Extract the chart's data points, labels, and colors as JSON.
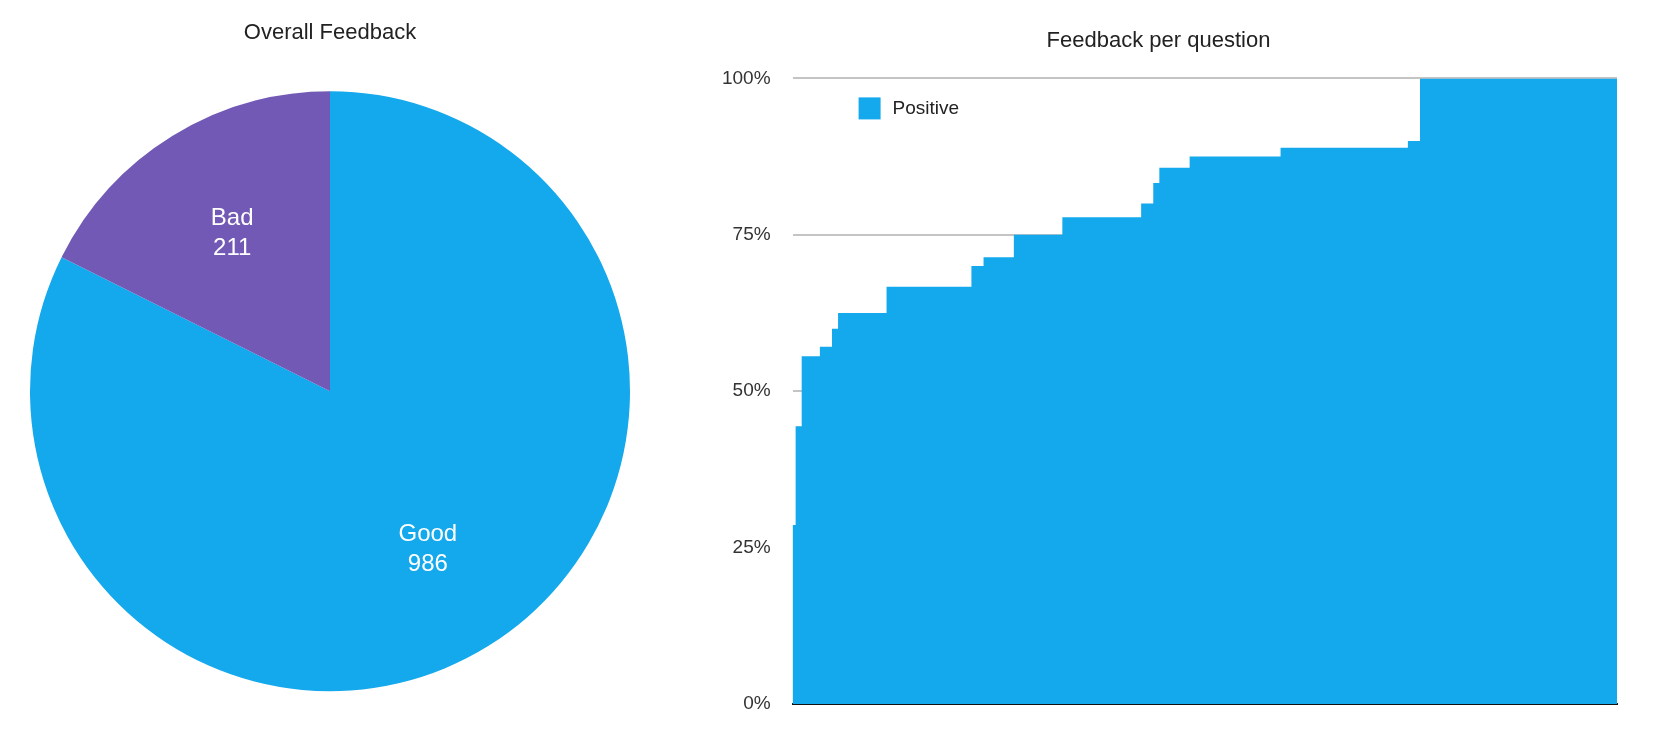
{
  "chart_data": [
    {
      "type": "pie",
      "title": "Overall Feedback",
      "categories": [
        "Good",
        "Bad"
      ],
      "values": [
        986,
        211
      ],
      "colors": [
        "#14a8ec",
        "#7159b5"
      ],
      "data_labels": true
    },
    {
      "type": "area",
      "title": "Feedback per question",
      "categories": [
        null,
        null,
        null,
        null,
        null,
        null,
        null,
        null,
        null,
        null,
        null,
        null,
        null,
        null,
        null,
        null,
        null,
        null,
        null,
        null,
        null,
        null,
        null,
        null,
        null,
        null,
        null,
        null,
        null,
        null,
        null,
        null,
        null,
        null,
        null,
        null,
        null,
        null,
        null,
        null,
        null,
        null,
        null,
        null,
        null,
        null,
        null,
        null,
        null,
        null,
        null,
        null,
        null,
        null,
        null,
        null,
        null,
        null,
        null,
        null,
        null,
        null,
        null,
        null,
        null,
        null,
        null,
        null,
        null,
        null,
        null,
        null,
        null,
        null,
        null,
        null,
        null,
        null,
        null,
        null,
        null,
        null,
        null,
        null,
        null,
        null,
        null,
        null,
        null,
        null,
        null,
        null,
        null,
        null,
        null,
        null,
        null,
        null,
        null,
        null,
        null,
        null,
        null,
        null,
        null,
        null,
        null,
        null,
        null,
        null,
        null,
        null,
        null,
        null,
        null,
        null,
        null,
        null,
        null,
        null,
        null,
        null,
        null,
        null,
        null,
        null,
        null,
        null,
        null,
        null,
        null,
        null,
        null,
        null,
        null,
        null,
        null
      ],
      "series": [
        {
          "name": "Positive",
          "color": "#14a8ec",
          "values": [
            28.6,
            44.4,
            55.6,
            55.6,
            55.6,
            57.1,
            57.1,
            60,
            62.5,
            62.5,
            62.5,
            62.5,
            62.5,
            62.5,
            62.5,
            62.5,
            66.7,
            66.7,
            66.7,
            66.7,
            66.7,
            66.7,
            66.7,
            66.7,
            66.7,
            66.7,
            66.7,
            66.7,
            66.7,
            66.7,
            70,
            70,
            71.4,
            71.4,
            71.4,
            71.4,
            71.4,
            75,
            75,
            75,
            75,
            75,
            75,
            75,
            75,
            77.8,
            77.8,
            77.8,
            77.8,
            77.8,
            77.8,
            77.8,
            77.8,
            77.8,
            77.8,
            77.8,
            77.8,
            77.8,
            80,
            80,
            83.3,
            85.7,
            85.7,
            85.7,
            85.7,
            85.7,
            87.5,
            87.5,
            87.5,
            87.5,
            87.5,
            87.5,
            87.5,
            87.5,
            87.5,
            87.5,
            87.5,
            87.5,
            87.5,
            87.5,
            87.5,
            88.9,
            88.9,
            88.9,
            88.9,
            88.9,
            88.9,
            88.9,
            88.9,
            88.9,
            88.9,
            88.9,
            88.9,
            88.9,
            88.9,
            88.9,
            88.9,
            88.9,
            88.9,
            88.9,
            88.9,
            88.9,
            90,
            90,
            100,
            100,
            100,
            100,
            100,
            100,
            100,
            100,
            100,
            100,
            100,
            100,
            100,
            100,
            100,
            100,
            100,
            100,
            100,
            100,
            100,
            100,
            100,
            100,
            100,
            100,
            100,
            100,
            100,
            100,
            100,
            100,
            100
          ]
        }
      ],
      "ylim": [
        0,
        100
      ],
      "yticks": [
        {
          "value": 0,
          "label": "0%"
        },
        {
          "value": 25,
          "label": "25%"
        },
        {
          "value": 50,
          "label": "50%"
        },
        {
          "value": 75,
          "label": "75%"
        },
        {
          "value": 100,
          "label": "100%"
        }
      ],
      "grid": "y",
      "legend": "top left",
      "tick_labels": "y",
      "marker": "none"
    }
  ]
}
